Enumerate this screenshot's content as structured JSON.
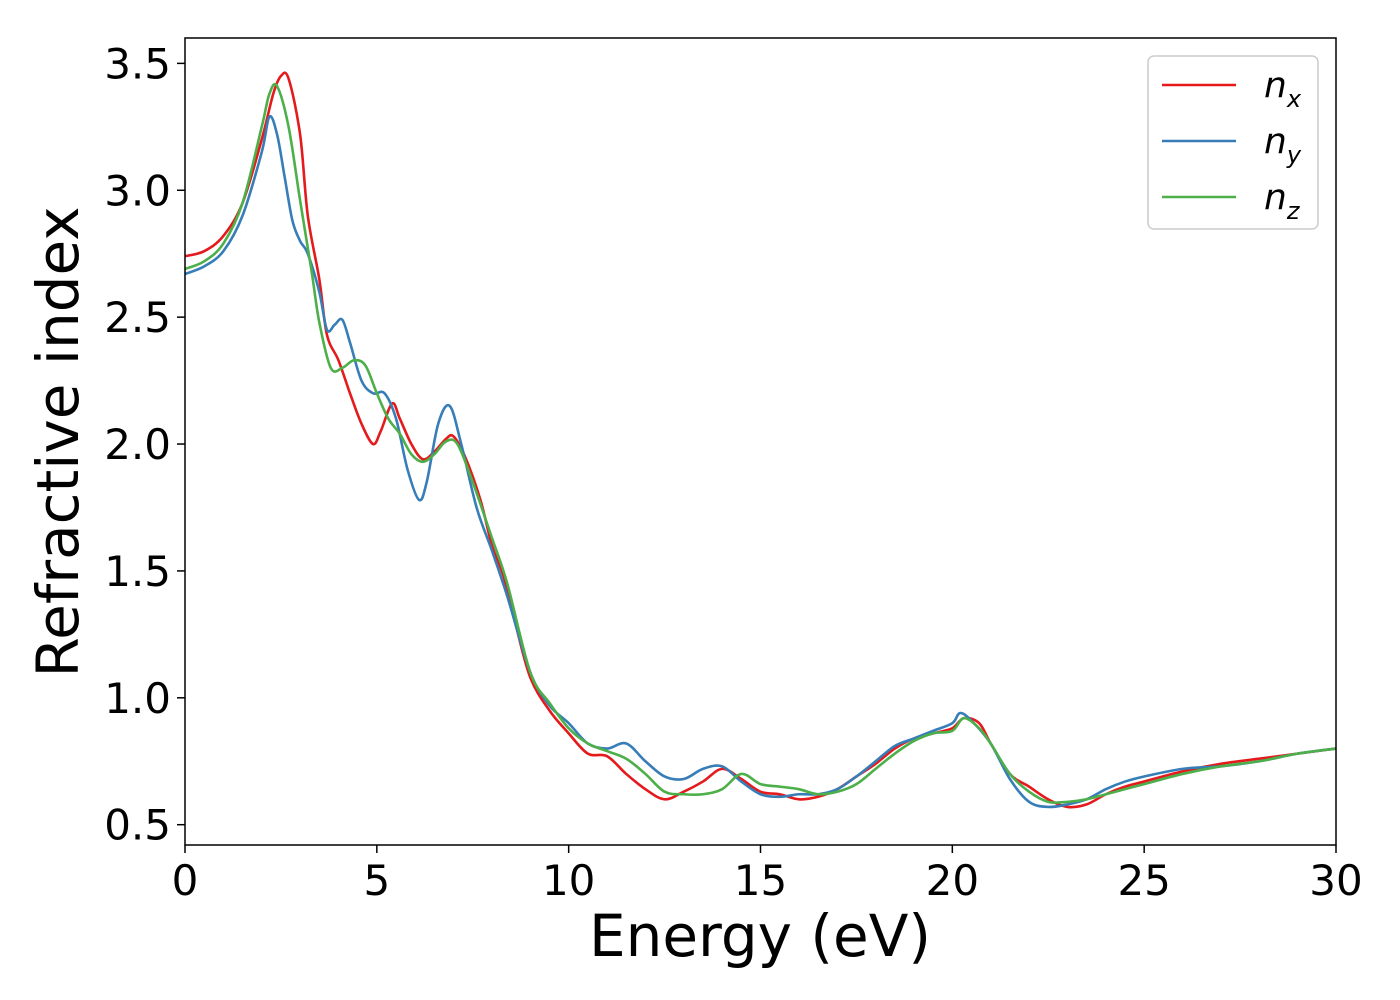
{
  "chart_data": {
    "type": "line",
    "title": "",
    "xlabel": "Energy (eV)",
    "ylabel": "Refractive index",
    "xlim": [
      0,
      30
    ],
    "ylim": [
      0.42,
      3.6
    ],
    "xticks": [
      0,
      5,
      10,
      15,
      20,
      25,
      30
    ],
    "yticks": [
      0.5,
      1.0,
      1.5,
      2.0,
      2.5,
      3.0,
      3.5
    ],
    "xtick_labels": [
      "0",
      "5",
      "10",
      "15",
      "20",
      "25",
      "30"
    ],
    "ytick_labels": [
      "0.5",
      "1.0",
      "1.5",
      "2.0",
      "2.5",
      "3.0",
      "3.5"
    ],
    "grid": false,
    "legend_position": "top-right",
    "series": [
      {
        "name": "n",
        "subscript": "x",
        "color": "#e41a1c",
        "x": [
          0,
          0.5,
          1,
          1.5,
          2,
          2.3,
          2.5,
          2.7,
          3,
          3.2,
          3.5,
          3.7,
          4,
          4.3,
          4.6,
          4.9,
          5.1,
          5.4,
          5.6,
          5.9,
          6.2,
          6.5,
          6.8,
          7,
          7.3,
          7.7,
          8,
          8.3,
          8.6,
          9,
          9.5,
          10,
          10.5,
          11,
          11.5,
          12,
          12.5,
          13,
          13.5,
          14,
          14.5,
          15,
          15.5,
          16,
          16.5,
          17,
          17.5,
          18,
          18.5,
          19,
          19.5,
          20,
          20.3,
          20.7,
          21,
          21.5,
          22,
          22.5,
          23,
          23.5,
          24,
          24.5,
          25,
          26,
          27,
          28,
          29,
          30
        ],
        "y": [
          2.74,
          2.76,
          2.82,
          2.95,
          3.2,
          3.38,
          3.45,
          3.44,
          3.22,
          2.9,
          2.65,
          2.43,
          2.33,
          2.2,
          2.08,
          2.0,
          2.05,
          2.16,
          2.1,
          2.0,
          1.94,
          1.97,
          2.02,
          2.03,
          1.95,
          1.78,
          1.6,
          1.48,
          1.3,
          1.08,
          0.95,
          0.86,
          0.78,
          0.77,
          0.7,
          0.64,
          0.6,
          0.63,
          0.67,
          0.72,
          0.68,
          0.63,
          0.62,
          0.6,
          0.61,
          0.64,
          0.69,
          0.74,
          0.8,
          0.84,
          0.86,
          0.88,
          0.92,
          0.9,
          0.82,
          0.7,
          0.65,
          0.6,
          0.57,
          0.58,
          0.62,
          0.65,
          0.67,
          0.71,
          0.74,
          0.76,
          0.78,
          0.8
        ]
      },
      {
        "name": "n",
        "subscript": "y",
        "color": "#377eb8",
        "x": [
          0,
          0.5,
          1,
          1.5,
          2,
          2.2,
          2.4,
          2.6,
          2.8,
          3,
          3.2,
          3.5,
          3.7,
          3.9,
          4.1,
          4.3,
          4.6,
          4.9,
          5.2,
          5.5,
          5.8,
          6.1,
          6.3,
          6.6,
          6.9,
          7.2,
          7.6,
          8,
          8.4,
          9,
          9.5,
          10,
          10.5,
          11,
          11.5,
          12,
          12.5,
          13,
          13.5,
          14,
          14.5,
          15,
          15.5,
          16,
          16.5,
          17,
          17.5,
          18,
          18.5,
          19,
          19.5,
          20,
          20.2,
          20.5,
          21,
          21.5,
          22,
          22.5,
          23,
          23.5,
          24,
          24.5,
          25,
          26,
          27,
          28,
          29,
          30
        ],
        "y": [
          2.67,
          2.7,
          2.76,
          2.9,
          3.15,
          3.29,
          3.22,
          3.05,
          2.88,
          2.8,
          2.75,
          2.6,
          2.45,
          2.47,
          2.49,
          2.4,
          2.25,
          2.2,
          2.2,
          2.1,
          1.9,
          1.78,
          1.85,
          2.08,
          2.15,
          2.0,
          1.75,
          1.58,
          1.4,
          1.1,
          0.97,
          0.9,
          0.82,
          0.8,
          0.82,
          0.75,
          0.69,
          0.68,
          0.72,
          0.73,
          0.67,
          0.62,
          0.61,
          0.62,
          0.62,
          0.64,
          0.69,
          0.75,
          0.81,
          0.84,
          0.87,
          0.9,
          0.94,
          0.91,
          0.82,
          0.68,
          0.59,
          0.57,
          0.58,
          0.6,
          0.64,
          0.67,
          0.69,
          0.72,
          0.73,
          0.75,
          0.78,
          0.8
        ]
      },
      {
        "name": "n",
        "subscript": "z",
        "color": "#4daf4a",
        "x": [
          0,
          0.5,
          1,
          1.5,
          2,
          2.2,
          2.4,
          2.7,
          3,
          3.3,
          3.5,
          3.8,
          4.1,
          4.4,
          4.7,
          5,
          5.3,
          5.6,
          5.9,
          6.2,
          6.5,
          6.8,
          7.1,
          7.5,
          8,
          8.4,
          9,
          9.5,
          10,
          10.5,
          11,
          11.5,
          12,
          12.5,
          13,
          13.5,
          14,
          14.5,
          15,
          15.5,
          16,
          16.5,
          17,
          17.5,
          18,
          18.5,
          19,
          19.5,
          20,
          20.3,
          20.7,
          21,
          21.5,
          22,
          22.5,
          23,
          23.5,
          24,
          24.5,
          25,
          26,
          27,
          28,
          29,
          30
        ],
        "y": [
          2.69,
          2.72,
          2.79,
          2.95,
          3.25,
          3.38,
          3.41,
          3.25,
          2.96,
          2.68,
          2.48,
          2.3,
          2.3,
          2.33,
          2.31,
          2.2,
          2.1,
          2.04,
          1.96,
          1.93,
          1.96,
          2.01,
          2.0,
          1.85,
          1.63,
          1.45,
          1.1,
          0.98,
          0.88,
          0.82,
          0.79,
          0.76,
          0.7,
          0.63,
          0.62,
          0.62,
          0.64,
          0.7,
          0.66,
          0.65,
          0.64,
          0.62,
          0.63,
          0.66,
          0.72,
          0.78,
          0.83,
          0.86,
          0.87,
          0.92,
          0.88,
          0.82,
          0.7,
          0.63,
          0.59,
          0.59,
          0.6,
          0.62,
          0.64,
          0.66,
          0.7,
          0.73,
          0.75,
          0.78,
          0.8
        ]
      }
    ]
  }
}
